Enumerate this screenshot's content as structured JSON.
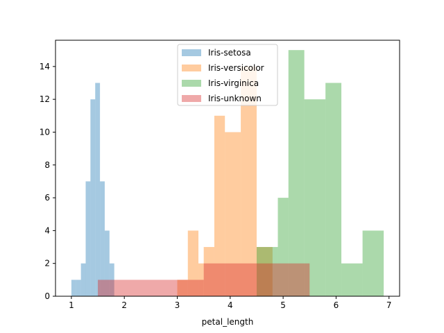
{
  "chart_data": {
    "type": "histogram",
    "title": "",
    "xlabel": "petal_length",
    "ylabel": "",
    "xlim": [
      0.7,
      7.2
    ],
    "ylim": [
      0,
      15.6
    ],
    "xticks": [
      1,
      2,
      3,
      4,
      5,
      6,
      7
    ],
    "yticks": [
      0,
      2,
      4,
      6,
      8,
      10,
      12,
      14
    ],
    "legend_position": "top-center",
    "series": [
      {
        "name": "Iris-setosa",
        "color": "#1f77b4",
        "bin_edges": [
          1.0,
          1.09,
          1.18,
          1.27,
          1.36,
          1.45,
          1.54,
          1.63,
          1.72,
          1.81,
          1.9
        ],
        "counts": [
          1,
          1,
          2,
          7,
          12,
          13,
          7,
          4,
          2,
          0
        ]
      },
      {
        "name": "Iris-versicolor",
        "color": "#ff7f0e",
        "bin_edges": [
          3.0,
          3.2,
          3.4,
          3.5,
          3.7,
          3.9,
          4.2,
          4.5,
          4.8,
          4.9
        ],
        "counts": [
          1,
          4,
          2,
          3,
          11,
          10,
          14,
          3,
          0
        ]
      },
      {
        "name": "Iris-virginica",
        "color": "#2ca02c",
        "bin_edges": [
          4.5,
          4.9,
          5.1,
          5.4,
          5.8,
          6.1,
          6.5,
          6.9
        ],
        "counts": [
          3,
          6,
          15,
          12,
          13,
          2,
          4
        ]
      },
      {
        "name": "Iris-unknown",
        "color": "#d62728",
        "bin_edges": [
          1.5,
          1.9,
          3.0,
          3.5,
          4.5,
          5.5
        ],
        "counts": [
          1,
          1,
          1,
          2,
          2
        ]
      }
    ]
  }
}
